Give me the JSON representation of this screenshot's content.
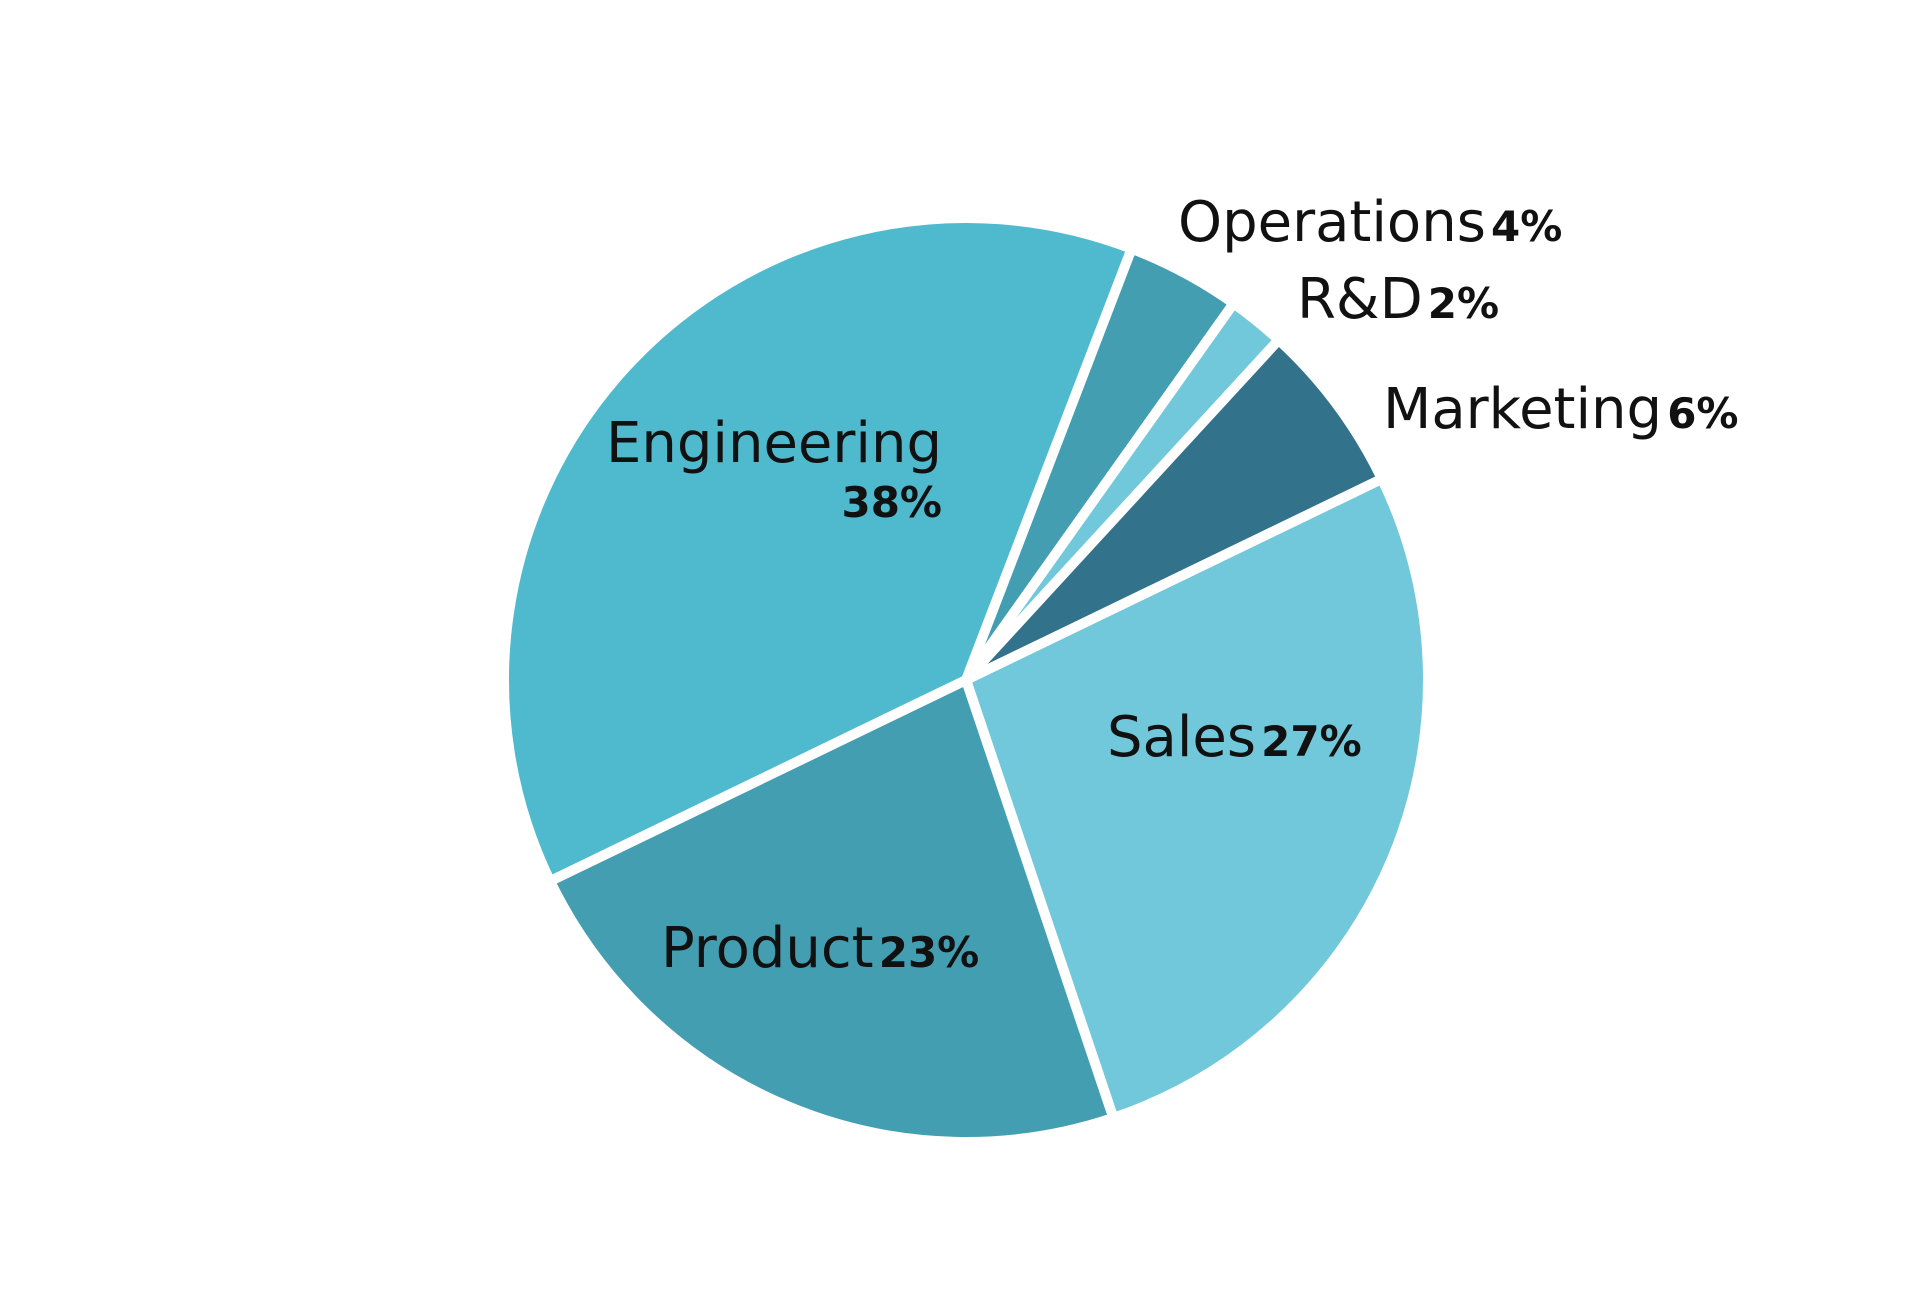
{
  "chart_data": {
    "type": "pie",
    "title": "",
    "start_angle_deg": 21,
    "direction": "clockwise",
    "legend": "none",
    "slices": [
      {
        "label": "Operations",
        "value": 4,
        "value_label": "4%",
        "color": "#449eb2"
      },
      {
        "label": "R&D",
        "value": 2,
        "value_label": "2%",
        "color": "#72c8db"
      },
      {
        "label": "Marketing",
        "value": 6,
        "value_label": "6%",
        "color": "#33728b"
      },
      {
        "label": "Sales",
        "value": 27,
        "value_label": "27%",
        "color": "#72c8db"
      },
      {
        "label": "Product",
        "value": 23,
        "value_label": "23%",
        "color": "#449eb2"
      },
      {
        "label": "Engineering",
        "value": 38,
        "value_label": "38%",
        "color": "#4fbacd"
      }
    ]
  }
}
